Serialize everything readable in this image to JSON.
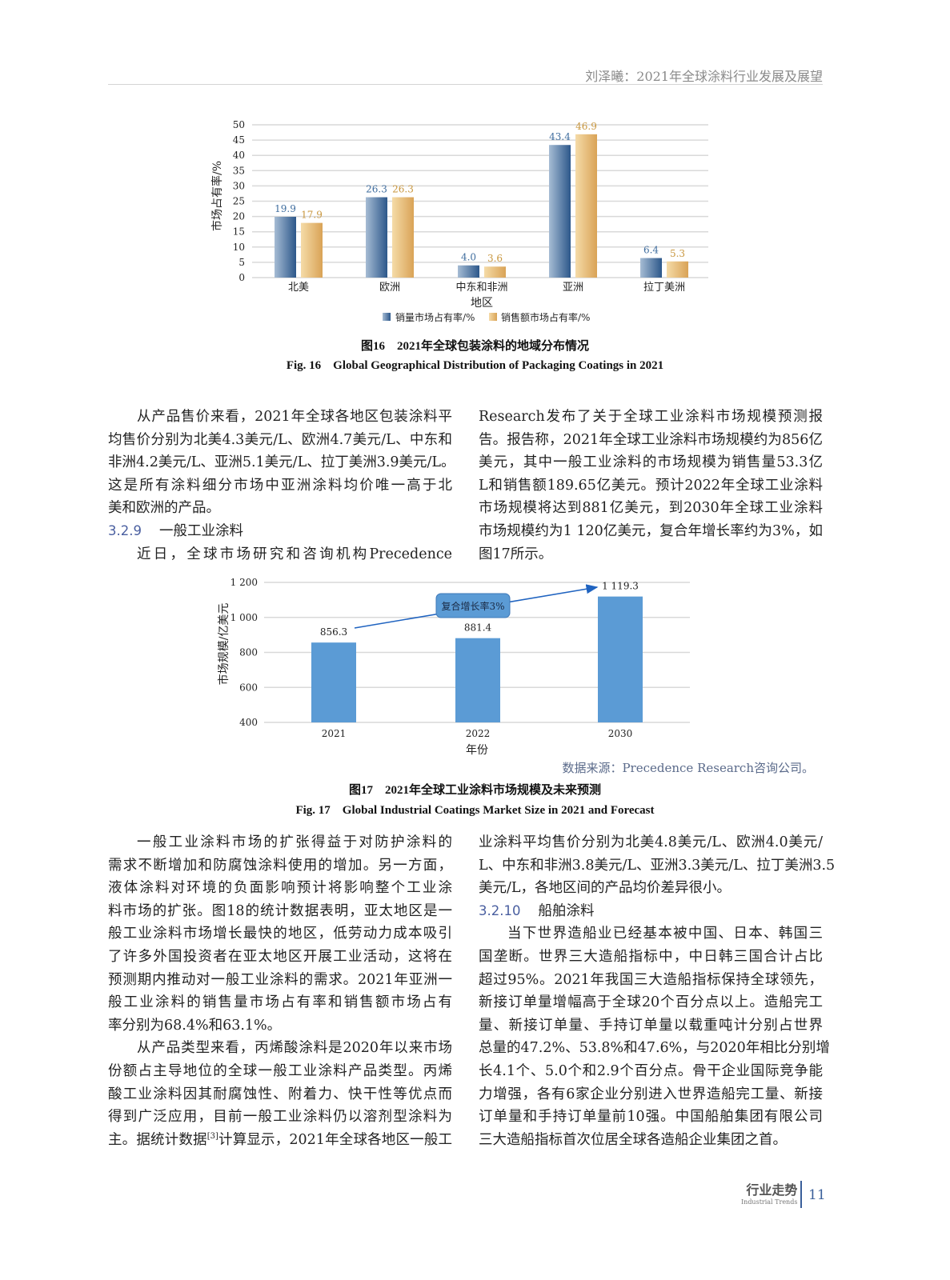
{
  "header": {
    "running_title": "刘泽曦：2021年全球涂料行业发展及展望"
  },
  "figure16": {
    "caption_cn": "图16　2021年全球包装涂料的地域分布情况",
    "caption_en": "Fig. 16　Global Geographical Distribution of Packaging Coatings in 2021"
  },
  "figure17": {
    "caption_cn": "图17　2021年全球工业涂料市场规模及未来预测",
    "caption_en": "Fig. 17　Global Industrial Coatings Market Size in 2021 and Forecast",
    "source": "数据来源：Precedence Research咨询公司。"
  },
  "chart_data": [
    {
      "type": "bar",
      "xlabel": "地区",
      "ylabel": "市场占有率/%",
      "ylim": [
        0,
        50
      ],
      "yticks": [
        "0",
        "5",
        "10",
        "15",
        "20",
        "25",
        "30",
        "35",
        "40",
        "45",
        "50"
      ],
      "grid": true,
      "legend_position": "bottom",
      "categories": [
        "北美",
        "欧洲",
        "中东和非洲",
        "亚洲",
        "拉丁美洲"
      ],
      "series": [
        {
          "name": "销量市场占有率/%",
          "values": [
            19.9,
            26.3,
            4.0,
            43.4,
            6.4
          ],
          "labels": [
            "19.9",
            "26.3",
            "4.0",
            "43.4",
            "6.4"
          ],
          "color": "#3b6696",
          "label_color": "#3f6d9e"
        },
        {
          "name": "销售额市场占有率/%",
          "values": [
            17.9,
            26.3,
            3.6,
            46.9,
            5.3
          ],
          "labels": [
            "17.9",
            "26.3",
            "3.6",
            "46.9",
            "5.3"
          ],
          "color": "#e2b36e",
          "label_color": "#c9973f"
        }
      ]
    },
    {
      "type": "bar",
      "xlabel": "年份",
      "ylabel": "市场规模/亿美元",
      "ylim": [
        400,
        1200
      ],
      "yticks": [
        "400",
        "600",
        "800",
        "1 000",
        "1 200"
      ],
      "grid": true,
      "categories": [
        "2021",
        "2022",
        "2030"
      ],
      "values": [
        856.3,
        881.4,
        1119.3
      ],
      "labels": [
        "856.3",
        "881.4",
        "1 119.3"
      ],
      "color": "#5b9bd5",
      "annotation": "复合增长率3%"
    }
  ],
  "body": {
    "upper_left": [
      {
        "type": "p",
        "lines": [
          "从产品售价来看，2021年全球各地区包装涂料平",
          "均售价分别为北美4.3美元/L、欧洲4.7美元/L、中东和",
          "非洲4.2美元/L、亚洲5.1美元/L、拉丁美洲3.9美元/L。",
          "这是所有涂料细分市场中亚洲涂料均价唯一高于北",
          "美和欧洲的产品。"
        ]
      },
      {
        "type": "h",
        "num": "3.2.9",
        "title": "一般工业涂料"
      },
      {
        "type": "p",
        "cont": true,
        "lines": [
          "近日，全球市场研究和咨询机构Precedence"
        ]
      }
    ],
    "upper_right": [
      {
        "type": "p",
        "noindent": true,
        "lines": [
          "Research发布了关于全球工业涂料市场规模预测报",
          "告。报告称，2021年全球工业涂料市场规模约为856亿",
          "美元，其中一般工业涂料的市场规模为销售量53.3亿",
          "L和销售额189.65亿美元。预计2022年全球工业涂料",
          "市场规模将达到881亿美元，到2030年全球工业涂料",
          "市场规模约为1 120亿美元，复合年增长率约为3%，如",
          "图17所示。"
        ]
      }
    ],
    "lower_left": [
      {
        "type": "p",
        "lines": [
          "一般工业涂料市场的扩张得益于对防护涂料的",
          "需求不断增加和防腐蚀涂料使用的增加。另一方面，",
          "液体涂料对环境的负面影响预计将影响整个工业涂",
          "料市场的扩张。图18的统计数据表明，亚太地区是一",
          "般工业涂料市场增长最快的地区，低劳动力成本吸引",
          "了许多外国投资者在亚太地区开展工业活动，这将在",
          "预测期内推动对一般工业涂料的需求。2021年亚洲一",
          "般工业涂料的销售量市场占有率和销售额市场占有",
          "率分别为68.4%和63.1%。"
        ]
      },
      {
        "type": "p",
        "cont": true,
        "lines": [
          "从产品类型来看，丙烯酸涂料是2020年以来市场",
          "份额占主导地位的全球一般工业涂料产品类型。丙烯",
          "酸工业涂料因其耐腐蚀性、附着力、快干性等优点而",
          "得到广泛应用，目前一般工业涂料仍以溶剂型涂料为",
          "主。据统计数据[3]计算显示，2021年全球各地区一般工"
        ]
      }
    ],
    "lower_right": [
      {
        "type": "p",
        "noindent": true,
        "lines": [
          "业涂料平均售价分别为北美4.8美元/L、欧洲4.0美元/",
          "L、中东和非洲3.8美元/L、亚洲3.3美元/L、拉丁美洲3.5",
          "美元/L，各地区间的产品均价差异很小。"
        ]
      },
      {
        "type": "h",
        "num": "3.2.10",
        "title": "船舶涂料"
      },
      {
        "type": "p",
        "lines": [
          "当下世界造船业已经基本被中国、日本、韩国三",
          "国垄断。世界三大造船指标中，中日韩三国合计占比",
          "超过95%。2021年我国三大造船指标保持全球领先，",
          "新接订单量增幅高于全球20个百分点以上。造船完工",
          "量、新接订单量、手持订单量以载重吨计分别占世界",
          "总量的47.2%、53.8%和47.6%，与2020年相比分别增",
          "长4.1个、5.0个和2.9个百分点。骨干企业国际竞争能",
          "力增强，各有6家企业分别进入世界造船完工量、新接",
          "订单量和手持订单量前10强。中国船舶集团有限公司",
          "三大造船指标首次位居全球各造船企业集团之首。"
        ]
      }
    ]
  },
  "footer": {
    "section_cn": "行业走势",
    "section_en": "Industrial Trends",
    "page_number": "11"
  }
}
